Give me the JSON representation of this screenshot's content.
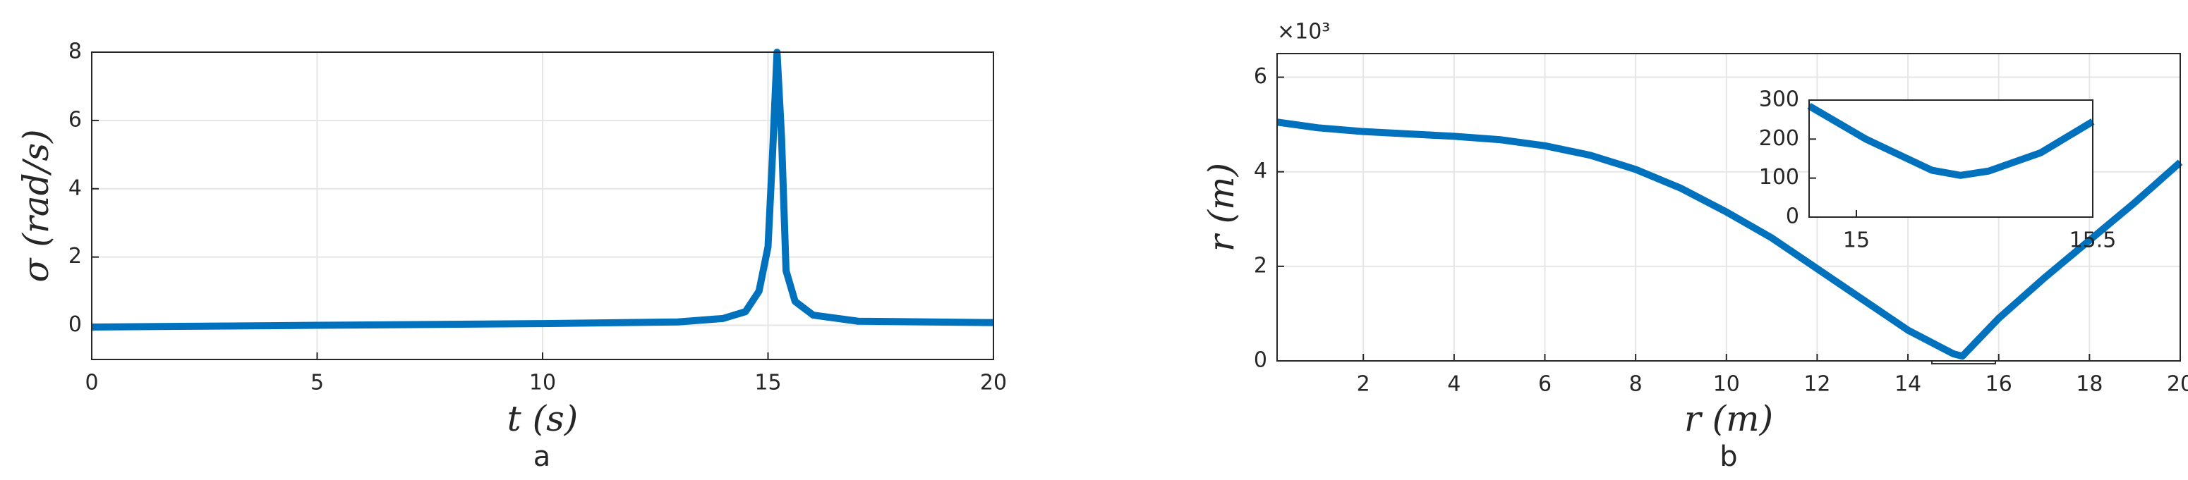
{
  "chart_data": [
    {
      "type": "line",
      "caption": "a",
      "xlabel": "t (s)",
      "ylabel": "σ (rad/s)",
      "xlim": [
        0,
        20
      ],
      "ylim": [
        -1,
        8
      ],
      "xticks": [
        0,
        5,
        10,
        15,
        20
      ],
      "yticks": [
        0,
        2,
        4,
        6,
        8
      ],
      "grid": true,
      "x": [
        0,
        5,
        10,
        13,
        14,
        14.5,
        14.8,
        15,
        15.1,
        15.2,
        15.3,
        15.4,
        15.6,
        16,
        17,
        20
      ],
      "series": [
        {
          "color": "#0072bd",
          "values": [
            -0.05,
            0,
            0.05,
            0.1,
            0.2,
            0.4,
            1.0,
            2.3,
            5,
            8,
            5.5,
            1.6,
            0.7,
            0.3,
            0.12,
            0.08
          ]
        }
      ]
    },
    {
      "type": "line",
      "caption": "b",
      "xlabel": "r (m)",
      "ylabel": "r (m)",
      "y_exponent_label": "×10³",
      "xlim": [
        0.1,
        20
      ],
      "ylim": [
        0,
        6.5
      ],
      "xticks": [
        2,
        4,
        6,
        8,
        10,
        12,
        14,
        16,
        18,
        20
      ],
      "yticks": [
        0,
        2,
        4,
        6
      ],
      "grid": true,
      "x": [
        0.1,
        1,
        2,
        3,
        4,
        5,
        6,
        7,
        8,
        9,
        10,
        11,
        12,
        13,
        14,
        15,
        15.2,
        16,
        17,
        18,
        19,
        20
      ],
      "series": [
        {
          "color": "#0072bd",
          "values": [
            5.05,
            4.93,
            4.85,
            4.8,
            4.75,
            4.68,
            4.55,
            4.35,
            4.05,
            3.65,
            3.15,
            2.6,
            1.95,
            1.3,
            0.65,
            0.15,
            0.1,
            0.9,
            1.75,
            2.55,
            3.35,
            4.2
          ]
        }
      ]
    },
    {
      "type": "line",
      "xlim": [
        14.9,
        15.5
      ],
      "ylim": [
        0,
        300
      ],
      "xticks": [
        15,
        15.5
      ],
      "yticks": [
        0,
        100,
        200,
        300
      ],
      "grid": false,
      "x": [
        14.9,
        15.02,
        15.16,
        15.22,
        15.28,
        15.39,
        15.5
      ],
      "series": [
        {
          "color": "#0072bd",
          "values": [
            285,
            200,
            120,
            107,
            118,
            165,
            245
          ]
        }
      ]
    }
  ]
}
